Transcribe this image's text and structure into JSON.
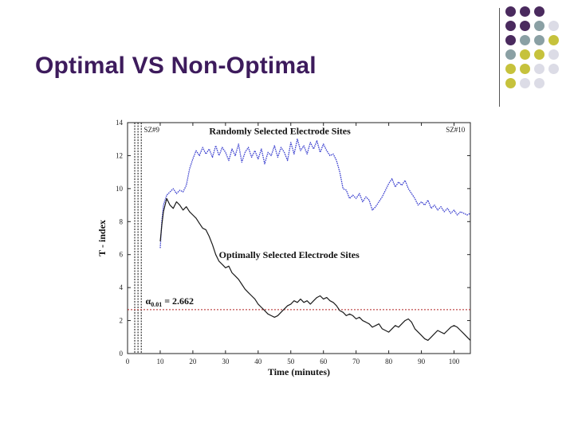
{
  "slide": {
    "title": "Optimal VS Non-Optimal"
  },
  "decoration": {
    "dot_colors": [
      [
        "#4a2a5e",
        "#4a2a5e",
        "#4a2a5e",
        null
      ],
      [
        "#4a2a5e",
        "#4a2a5e",
        "#8aa0a4",
        "#dcdce6"
      ],
      [
        "#4a2a5e",
        "#8aa0a4",
        "#8aa0a4",
        "#c6c23c"
      ],
      [
        "#8aa0a4",
        "#c6c23c",
        "#c6c23c",
        "#dcdce6"
      ],
      [
        "#c6c23c",
        "#c6c23c",
        "#dcdce6",
        "#dcdce6"
      ],
      [
        "#c6c23c",
        "#dcdce6",
        "#dcdce6",
        null
      ]
    ]
  },
  "chart_data": {
    "type": "line",
    "xlabel": "Time (minutes)",
    "ylabel": "T - index",
    "xlim": [
      0,
      105
    ],
    "ylim": [
      0,
      14
    ],
    "xticks": [
      "0",
      "10",
      "20",
      "30",
      "40",
      "50",
      "60",
      "70",
      "80",
      "90",
      "100"
    ],
    "yticks": [
      "0",
      "2",
      "4",
      "6",
      "8",
      "10",
      "12",
      "14"
    ],
    "annotations": {
      "sz_left": "SZ#9",
      "sz_right": "SZ#10",
      "threshold_label_alpha": "α",
      "threshold_label_sub": "0.01",
      "threshold_label_value": " = 2.662"
    },
    "seizure_marks_x": [
      2.2,
      3.2,
      4.2
    ],
    "threshold": 2.662,
    "series": [
      {
        "name": "Randomly Selected Electrode Sites",
        "color": "#3a3fcf",
        "style": "dotted",
        "x": [
          10,
          10.5,
          11,
          12,
          13,
          14,
          15,
          16,
          17,
          18,
          19,
          20,
          21,
          22,
          23,
          24,
          25,
          26,
          27,
          28,
          29,
          30,
          31,
          32,
          33,
          34,
          35,
          36,
          37,
          38,
          39,
          40,
          41,
          42,
          43,
          44,
          45,
          46,
          47,
          48,
          49,
          50,
          51,
          52,
          53,
          54,
          55,
          56,
          57,
          58,
          59,
          60,
          61,
          62,
          63,
          64,
          65,
          66,
          67,
          68,
          69,
          70,
          71,
          72,
          73,
          74,
          75,
          76,
          77,
          78,
          79,
          80,
          81,
          82,
          83,
          84,
          85,
          86,
          87,
          88,
          89,
          90,
          91,
          92,
          93,
          94,
          95,
          96,
          97,
          98,
          99,
          100,
          101,
          102,
          103,
          104,
          105
        ],
        "y": [
          6.4,
          8.0,
          9.0,
          9.6,
          9.8,
          10.0,
          9.7,
          9.9,
          9.8,
          10.2,
          11.2,
          11.8,
          12.3,
          12.0,
          12.5,
          12.1,
          12.4,
          11.9,
          12.6,
          12.0,
          12.5,
          12.2,
          11.7,
          12.4,
          12.0,
          12.7,
          11.6,
          12.2,
          12.5,
          11.9,
          12.3,
          11.8,
          12.4,
          11.5,
          12.2,
          12.0,
          12.6,
          11.9,
          12.5,
          12.2,
          11.7,
          12.8,
          12.1,
          13.0,
          12.3,
          12.6,
          12.1,
          12.8,
          12.4,
          12.9,
          12.2,
          12.7,
          12.3,
          12.0,
          12.1,
          11.7,
          11.0,
          10.0,
          9.9,
          9.4,
          9.6,
          9.4,
          9.7,
          9.2,
          9.5,
          9.3,
          8.7,
          8.9,
          9.2,
          9.5,
          9.9,
          10.3,
          10.6,
          10.1,
          10.4,
          10.2,
          10.5,
          10.0,
          9.7,
          9.4,
          9.0,
          9.2,
          9.0,
          9.3,
          8.8,
          9.0,
          8.7,
          8.9,
          8.6,
          8.8,
          8.5,
          8.7,
          8.4,
          8.6,
          8.5,
          8.4,
          8.5
        ]
      },
      {
        "name": "Optimally Selected Electrode Sites",
        "color": "#1a1a1a",
        "style": "solid",
        "x": [
          10,
          10.5,
          11,
          12,
          13,
          14,
          15,
          16,
          17,
          18,
          19,
          20,
          21,
          22,
          23,
          24,
          25,
          26,
          27,
          28,
          29,
          30,
          31,
          32,
          33,
          34,
          35,
          36,
          37,
          38,
          39,
          40,
          41,
          42,
          43,
          44,
          45,
          46,
          47,
          48,
          49,
          50,
          51,
          52,
          53,
          54,
          55,
          56,
          57,
          58,
          59,
          60,
          61,
          62,
          63,
          64,
          65,
          66,
          67,
          68,
          69,
          70,
          71,
          72,
          73,
          74,
          75,
          76,
          77,
          78,
          79,
          80,
          81,
          82,
          83,
          84,
          85,
          86,
          87,
          88,
          89,
          90,
          91,
          92,
          93,
          94,
          95,
          96,
          97,
          98,
          99,
          100,
          101,
          102,
          103,
          104,
          105
        ],
        "y": [
          6.8,
          7.8,
          8.6,
          9.4,
          9.0,
          8.8,
          9.2,
          9.0,
          8.7,
          8.9,
          8.6,
          8.4,
          8.2,
          7.9,
          7.6,
          7.5,
          7.1,
          6.6,
          6.0,
          5.6,
          5.4,
          5.2,
          5.3,
          4.9,
          4.7,
          4.5,
          4.2,
          3.9,
          3.7,
          3.5,
          3.3,
          3.0,
          2.8,
          2.6,
          2.4,
          2.3,
          2.2,
          2.3,
          2.5,
          2.7,
          2.9,
          3.0,
          3.2,
          3.1,
          3.3,
          3.1,
          3.2,
          3.0,
          3.2,
          3.4,
          3.5,
          3.3,
          3.4,
          3.2,
          3.1,
          2.9,
          2.6,
          2.5,
          2.3,
          2.4,
          2.3,
          2.1,
          2.2,
          2.0,
          1.9,
          1.8,
          1.6,
          1.7,
          1.8,
          1.5,
          1.4,
          1.3,
          1.5,
          1.7,
          1.6,
          1.8,
          2.0,
          2.1,
          1.9,
          1.5,
          1.3,
          1.1,
          0.9,
          0.8,
          1.0,
          1.2,
          1.4,
          1.3,
          1.2,
          1.4,
          1.6,
          1.7,
          1.6,
          1.4,
          1.2,
          1.0,
          0.8
        ]
      }
    ]
  }
}
